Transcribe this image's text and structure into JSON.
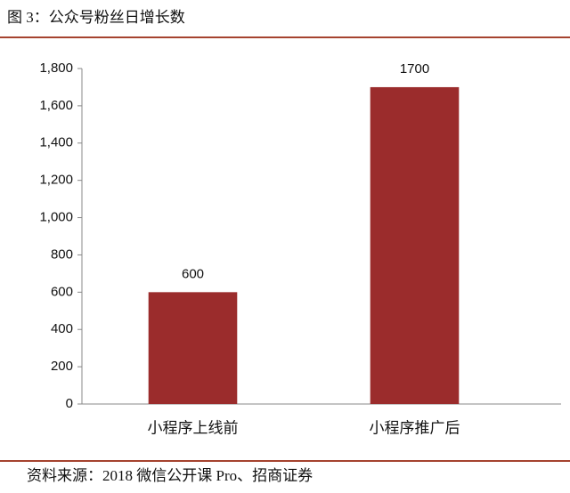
{
  "chart_data": {
    "type": "bar",
    "title": "图 3：公众号粉丝日增长数",
    "source": "资料来源：2018 微信公开课 Pro、招商证券",
    "categories": [
      "小程序上线前",
      "小程序推广后"
    ],
    "values": [
      600,
      1700
    ],
    "color": "#9b2c2c",
    "ylim": [
      0,
      1800
    ],
    "yticks": [
      0,
      200,
      400,
      600,
      800,
      {
        "value": 1000,
        "label": "1,000"
      },
      {
        "value": 1200,
        "label": "1,200"
      },
      {
        "value": 1400,
        "label": "1,400"
      },
      {
        "value": 1600,
        "label": "1,600"
      },
      {
        "value": 1800,
        "label": "1,800"
      }
    ],
    "grid": false
  }
}
